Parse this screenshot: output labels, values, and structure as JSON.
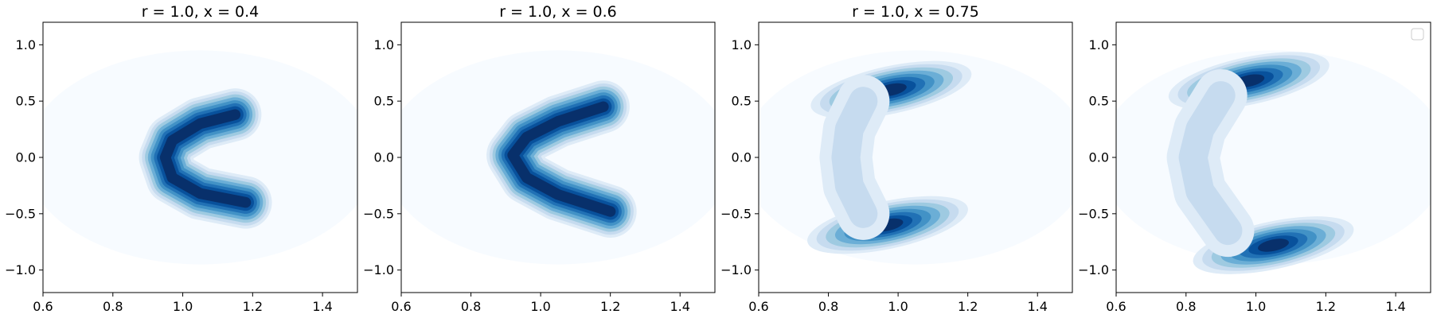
{
  "chart_data": [
    {
      "type": "heatmap",
      "subtype": "filled-contour-density",
      "title": "r = 1.0, x = 0.4",
      "xlim": [
        0.6,
        1.5
      ],
      "ylim": [
        -1.2,
        1.2
      ],
      "xticks": [
        0.6,
        0.8,
        1.0,
        1.2,
        1.4
      ],
      "xtick_labels": [
        "0.6",
        "0.8",
        "1.0",
        "1.2",
        "1.4"
      ],
      "yticks": [
        -1.0,
        -0.5,
        0.0,
        0.5,
        1.0
      ],
      "ytick_labels": [
        "−1.0",
        "−0.5",
        "0.0",
        "0.5",
        "1.0"
      ],
      "colormap": "Blues",
      "grid": false,
      "legend": false,
      "density_features": [
        {
          "shape": "arc",
          "points": [
            [
              1.15,
              0.38
            ],
            [
              1.05,
              0.3
            ],
            [
              0.97,
              0.15
            ],
            [
              0.95,
              0.0
            ],
            [
              0.97,
              -0.18
            ],
            [
              1.05,
              -0.32
            ],
            [
              1.18,
              -0.4
            ]
          ],
          "peak": 1.0
        }
      ]
    },
    {
      "type": "heatmap",
      "subtype": "filled-contour-density",
      "title": "r = 1.0, x = 0.6",
      "xlim": [
        0.6,
        1.5
      ],
      "ylim": [
        -1.2,
        1.2
      ],
      "xticks": [
        0.6,
        0.8,
        1.0,
        1.2,
        1.4
      ],
      "xtick_labels": [
        "0.6",
        "0.8",
        "1.0",
        "1.2",
        "1.4"
      ],
      "yticks": [
        -1.0,
        -0.5,
        0.0,
        0.5,
        1.0
      ],
      "ytick_labels": [
        "−1.0",
        "−0.5",
        "0.0",
        "0.5",
        "1.0"
      ],
      "colormap": "Blues",
      "grid": false,
      "legend": false,
      "density_features": [
        {
          "shape": "arc",
          "points": [
            [
              1.18,
              0.45
            ],
            [
              1.05,
              0.32
            ],
            [
              0.96,
              0.18
            ],
            [
              0.92,
              0.02
            ],
            [
              0.96,
              -0.18
            ],
            [
              1.05,
              -0.33
            ],
            [
              1.2,
              -0.48
            ]
          ],
          "peak": 1.0
        }
      ]
    },
    {
      "type": "heatmap",
      "subtype": "filled-contour-density",
      "title": "r = 1.0, x = 0.75",
      "xlim": [
        0.6,
        1.5
      ],
      "ylim": [
        -1.2,
        1.2
      ],
      "xticks": [
        0.6,
        0.8,
        1.0,
        1.2,
        1.4
      ],
      "xtick_labels": [
        "0.6",
        "0.8",
        "1.0",
        "1.2",
        "1.4"
      ],
      "yticks": [
        -1.0,
        -0.5,
        0.0,
        0.5,
        1.0
      ],
      "ytick_labels": [
        "−1.0",
        "−0.5",
        "0.0",
        "0.5",
        "1.0"
      ],
      "colormap": "Blues",
      "grid": false,
      "legend": false,
      "density_features": [
        {
          "shape": "blob",
          "center": [
            0.98,
            0.6
          ],
          "peak": 1.0
        },
        {
          "shape": "blob",
          "center": [
            0.97,
            -0.6
          ],
          "peak": 1.0
        },
        {
          "shape": "arc",
          "points": [
            [
              0.9,
              0.5
            ],
            [
              0.86,
              0.25
            ],
            [
              0.85,
              0.0
            ],
            [
              0.86,
              -0.25
            ],
            [
              0.9,
              -0.5
            ]
          ],
          "peak": 0.25
        }
      ]
    },
    {
      "type": "heatmap",
      "subtype": "filled-contour-density",
      "title": "",
      "xlim": [
        0.6,
        1.5
      ],
      "ylim": [
        -1.2,
        1.2
      ],
      "xticks": [
        0.6,
        0.8,
        1.0,
        1.2,
        1.4
      ],
      "xtick_labels": [
        "0.6",
        "0.8",
        "1.0",
        "1.2",
        "1.4"
      ],
      "yticks": [
        -1.0,
        -0.5,
        0.0,
        0.5,
        1.0
      ],
      "ytick_labels": [
        "−1.0",
        "−0.5",
        "0.0",
        "0.5",
        "1.0"
      ],
      "colormap": "Blues",
      "grid": false,
      "legend": true,
      "legend_entries": [],
      "legend_placement": "top-right",
      "density_features": [
        {
          "shape": "blob",
          "center": [
            0.98,
            0.68
          ],
          "peak": 1.0
        },
        {
          "shape": "blob",
          "center": [
            1.05,
            -0.78
          ],
          "peak": 1.0
        },
        {
          "shape": "arc",
          "points": [
            [
              0.9,
              0.55
            ],
            [
              0.84,
              0.25
            ],
            [
              0.82,
              0.0
            ],
            [
              0.84,
              -0.3
            ],
            [
              0.92,
              -0.65
            ]
          ],
          "peak": 0.2
        }
      ]
    }
  ],
  "colors": {
    "levels": [
      "#f7fbff",
      "#deebf7",
      "#c6dbef",
      "#9ecae1",
      "#6baed6",
      "#4292c6",
      "#2171b5",
      "#08519c",
      "#08306b"
    ],
    "axes": "#000000",
    "background": "#ffffff"
  }
}
